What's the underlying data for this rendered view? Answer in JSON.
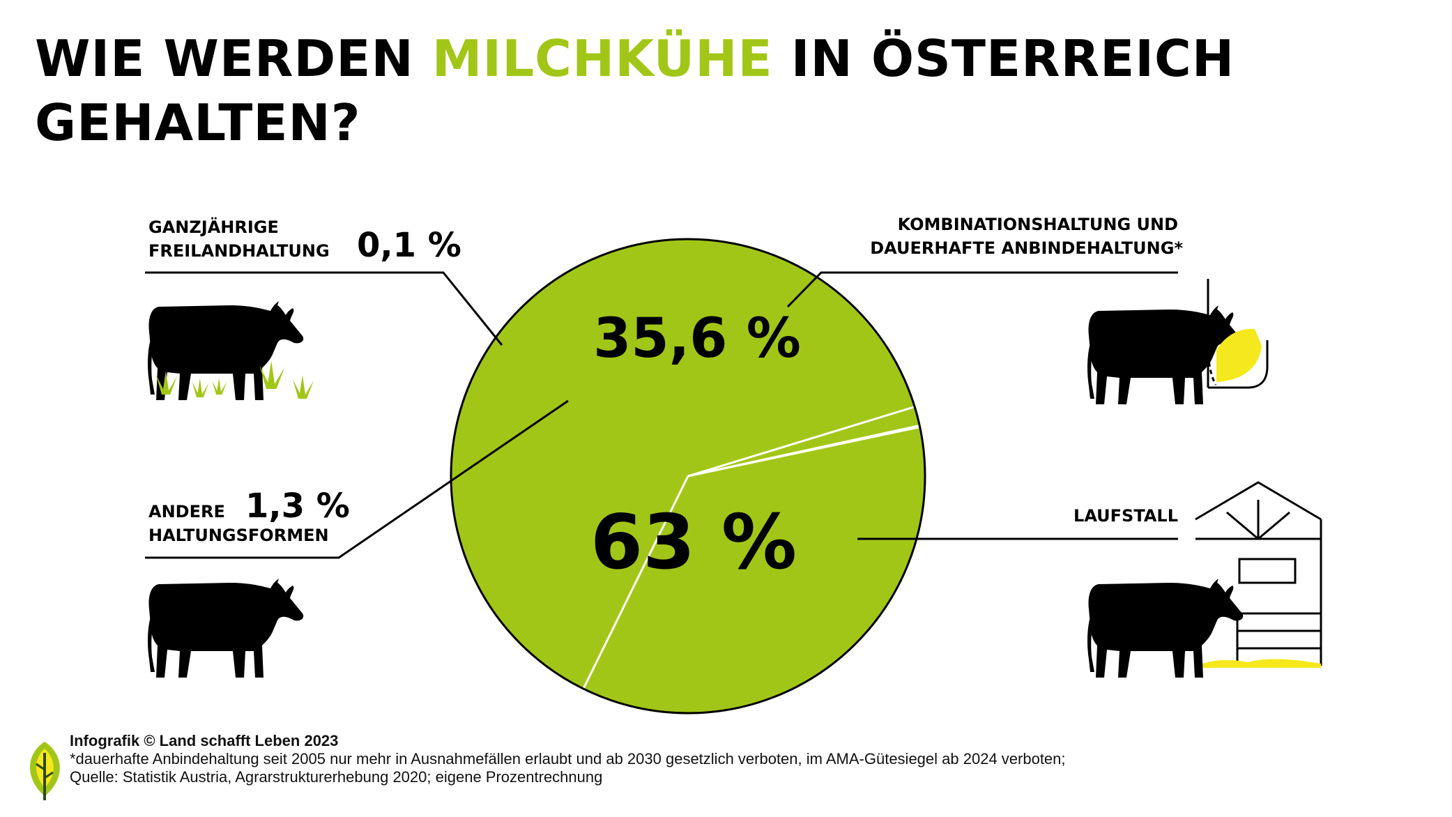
{
  "title": {
    "part1": "WIE WERDEN ",
    "highlight": "MILCHKÜHE",
    "part2": " IN ÖSTERREICH",
    "line2": "GEHALTEN?"
  },
  "colors": {
    "accent": "#a2c617",
    "text": "#000000",
    "hay": "#f5e81c",
    "grass": "#a2c617"
  },
  "chart_data": {
    "type": "pie",
    "slices": [
      {
        "label_line1": "",
        "label_line2": "LAUFSTALL",
        "value": 63,
        "value_label": "63 %",
        "color": "#a2c617",
        "icon": "cow-in-barn-icon"
      },
      {
        "label_line1": "KOMBINATIONSHALTUNG UND",
        "label_line2": "DAUERHAFTE ANBINDEHALTUNG*",
        "value": 35.6,
        "value_label": "35,6 %",
        "color": "#a2c617",
        "icon": "tethered-cow-icon"
      },
      {
        "label_line1": "GANZJÄHRIGE",
        "label_line2": "FREILANDHALTUNG",
        "value": 0.1,
        "value_label": "0,1 %",
        "color": "#a2c617",
        "icon": "cow-on-pasture-icon"
      },
      {
        "label_line1": "ANDERE",
        "label_line2": "HALTUNGSFORMEN",
        "value": 1.3,
        "value_label": "1,3 %",
        "color": "#a2c617",
        "icon": "cow-icon"
      }
    ]
  },
  "footer": {
    "credit": "Infografik © Land schafft Leben 2023",
    "note": "*dauerhafte Anbindehaltung seit 2005 nur mehr in Ausnahmefällen erlaubt und ab 2030 gesetzlich verboten, im AMA-Gütesiegel ab 2024 verboten;",
    "source": "Quelle: Statistik Austria, Agrarstrukturerhebung 2020; eigene Prozentrechnung"
  }
}
